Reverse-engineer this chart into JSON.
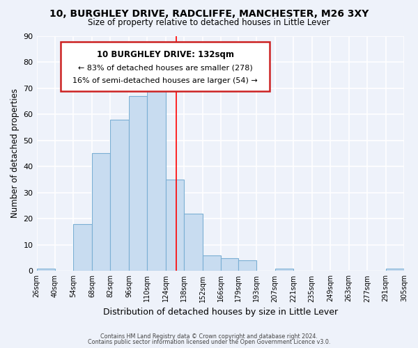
{
  "title": "10, BURGHLEY DRIVE, RADCLIFFE, MANCHESTER, M26 3XY",
  "subtitle": "Size of property relative to detached houses in Little Lever",
  "xlabel": "Distribution of detached houses by size in Little Lever",
  "ylabel": "Number of detached properties",
  "bar_edges": [
    26,
    40,
    54,
    68,
    82,
    96,
    110,
    124,
    138,
    152,
    166,
    179,
    193,
    207,
    221,
    235,
    249,
    263,
    277,
    291,
    305
  ],
  "bar_heights": [
    1,
    0,
    18,
    45,
    58,
    67,
    73,
    35,
    22,
    6,
    5,
    4,
    0,
    1,
    0,
    0,
    0,
    0,
    0,
    1
  ],
  "bar_color": "#c8dcf0",
  "bar_edgecolor": "#7bafd4",
  "property_line_x": 132,
  "property_line_color": "red",
  "ylim": [
    0,
    90
  ],
  "yticks": [
    0,
    10,
    20,
    30,
    40,
    50,
    60,
    70,
    80,
    90
  ],
  "x_tick_labels": [
    "26sqm",
    "40sqm",
    "54sqm",
    "68sqm",
    "82sqm",
    "96sqm",
    "110sqm",
    "124sqm",
    "138sqm",
    "152sqm",
    "166sqm",
    "179sqm",
    "193sqm",
    "207sqm",
    "221sqm",
    "235sqm",
    "249sqm",
    "263sqm",
    "277sqm",
    "291sqm",
    "305sqm"
  ],
  "annotation_title": "10 BURGHLEY DRIVE: 132sqm",
  "annotation_line1": "← 83% of detached houses are smaller (278)",
  "annotation_line2": "16% of semi-detached houses are larger (54) →",
  "footer_line1": "Contains HM Land Registry data © Crown copyright and database right 2024.",
  "footer_line2": "Contains public sector information licensed under the Open Government Licence v3.0.",
  "background_color": "#eef2fa",
  "grid_color": "white"
}
